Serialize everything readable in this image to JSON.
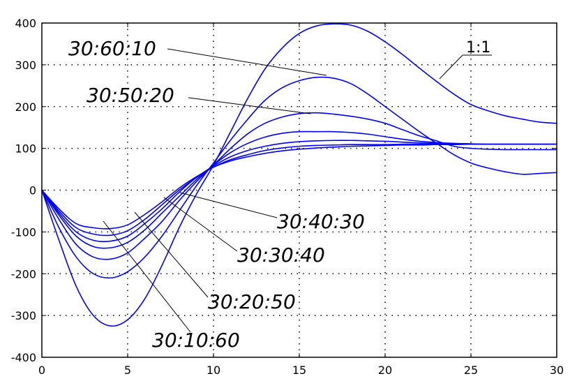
{
  "chart_data": {
    "type": "line",
    "title": "",
    "xlabel": "",
    "ylabel": "",
    "xlim": [
      0,
      30
    ],
    "ylim": [
      -400,
      400
    ],
    "grid": true,
    "x_ticks": [
      "0",
      "5",
      "10",
      "15",
      "20",
      "25",
      "30"
    ],
    "y_ticks": [
      "400",
      "300",
      "200",
      "100",
      "0",
      "-100",
      "-200",
      "-300",
      "-400"
    ],
    "x_tick_values": [
      0,
      5,
      10,
      15,
      20,
      25,
      30
    ],
    "y_tick_values": [
      400,
      300,
      200,
      100,
      0,
      -100,
      -200,
      -300,
      -400
    ],
    "line_color": "#0000ff",
    "x": [
      0,
      1,
      2,
      3,
      4,
      5,
      6,
      7,
      8,
      9,
      10,
      11,
      12,
      13,
      14,
      15,
      16,
      17,
      18,
      19,
      20,
      21,
      22,
      23,
      24,
      25,
      26,
      27,
      28,
      29,
      30
    ],
    "series": [
      {
        "name": "1:1",
        "values": [
          0,
          -120,
          -230,
          -300,
          -325,
          -310,
          -260,
          -180,
          -90,
          -10,
          60,
          140,
          220,
          290,
          340,
          375,
          393,
          398,
          395,
          380,
          355,
          325,
          292,
          260,
          230,
          205,
          190,
          178,
          170,
          163,
          160
        ]
      },
      {
        "name": "30:60:10",
        "values": [
          0,
          -90,
          -160,
          -200,
          -210,
          -195,
          -160,
          -110,
          -50,
          10,
          65,
          120,
          170,
          215,
          245,
          262,
          270,
          268,
          255,
          230,
          200,
          170,
          140,
          112,
          85,
          65,
          53,
          44,
          38,
          40,
          42
        ]
      },
      {
        "name": "30:50:20",
        "values": [
          0,
          -70,
          -130,
          -160,
          -165,
          -150,
          -115,
          -75,
          -25,
          20,
          60,
          100,
          135,
          160,
          175,
          183,
          185,
          182,
          177,
          170,
          160,
          145,
          130,
          118,
          105,
          100,
          98,
          97,
          97,
          97,
          97
        ]
      },
      {
        "name": "30:40:30",
        "values": [
          0,
          -60,
          -110,
          -135,
          -138,
          -125,
          -95,
          -55,
          -15,
          25,
          60,
          90,
          112,
          127,
          136,
          140,
          140,
          140,
          138,
          134,
          128,
          122,
          117,
          114,
          112,
          111,
          110,
          110,
          110,
          110,
          110
        ]
      },
      {
        "name": "30:30:40",
        "values": [
          0,
          -55,
          -100,
          -120,
          -122,
          -110,
          -80,
          -45,
          -5,
          30,
          58,
          80,
          95,
          105,
          112,
          116,
          118,
          119,
          119,
          118,
          117,
          115,
          113,
          112,
          111,
          110,
          110,
          110,
          110,
          110,
          110
        ]
      },
      {
        "name": "30:20:50",
        "values": [
          0,
          -50,
          -90,
          -105,
          -108,
          -97,
          -70,
          -35,
          0,
          30,
          55,
          73,
          85,
          95,
          101,
          105,
          107,
          108,
          109,
          109,
          109,
          110,
          110,
          110,
          110,
          110,
          110,
          110,
          110,
          110,
          110
        ]
      },
      {
        "name": "30:10:60",
        "values": [
          0,
          -45,
          -80,
          -90,
          -92,
          -83,
          -58,
          -28,
          5,
          32,
          55,
          70,
          80,
          88,
          94,
          98,
          101,
          103,
          105,
          106,
          107,
          108,
          108,
          109,
          109,
          110,
          110,
          110,
          110,
          110,
          110
        ]
      }
    ],
    "annotations": [
      "30:60:10",
      "1:1",
      "30:50:20",
      "30:40:30",
      "30:30:40",
      "30:20:50",
      "30:10:60"
    ]
  }
}
